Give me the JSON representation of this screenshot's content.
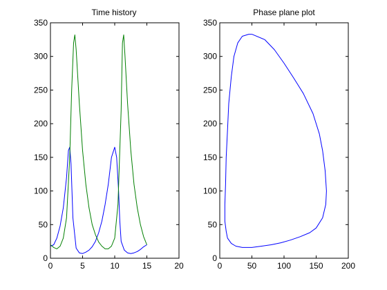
{
  "chart_data": [
    {
      "type": "line",
      "title": "Time history",
      "xlabel": "",
      "ylabel": "",
      "xlim": [
        0,
        20
      ],
      "ylim": [
        0,
        350
      ],
      "x_ticks": [
        0,
        5,
        10,
        15,
        20
      ],
      "y_ticks": [
        0,
        50,
        100,
        150,
        200,
        250,
        300,
        350
      ],
      "grid": false,
      "series": [
        {
          "color": "#0000ff",
          "x": [
            0,
            0.5,
            1,
            1.5,
            2,
            2.5,
            2.8,
            3,
            3.2,
            3.5,
            4,
            4.5,
            5,
            5.5,
            6,
            6.5,
            7,
            7.5,
            8,
            8.5,
            9,
            9.5,
            10,
            10.3,
            10.6,
            10.8,
            11,
            11.5,
            12,
            12.5,
            13,
            13.5,
            14,
            14.5,
            15
          ],
          "y": [
            18,
            20,
            30,
            48,
            75,
            120,
            160,
            165,
            140,
            60,
            15,
            8,
            7,
            9,
            12,
            17,
            25,
            38,
            55,
            80,
            110,
            150,
            165,
            150,
            100,
            55,
            25,
            12,
            8,
            7,
            8,
            10,
            13,
            17,
            20
          ]
        },
        {
          "color": "#007f00",
          "x": [
            0,
            0.5,
            1,
            1.5,
            2,
            2.5,
            3,
            3.3,
            3.6,
            3.8,
            4,
            4.5,
            5,
            5.5,
            6,
            6.5,
            7,
            7.5,
            8,
            8.5,
            9,
            9.5,
            10,
            10.5,
            11,
            11.2,
            11.4,
            11.6,
            12,
            12.5,
            13,
            13.5,
            14,
            14.5,
            15
          ],
          "y": [
            20,
            16,
            14,
            18,
            30,
            60,
            150,
            250,
            320,
            332,
            310,
            230,
            160,
            110,
            75,
            50,
            35,
            24,
            18,
            14,
            14,
            18,
            30,
            80,
            220,
            320,
            332,
            300,
            230,
            160,
            110,
            75,
            50,
            32,
            20
          ]
        }
      ]
    },
    {
      "type": "line",
      "title": "Phase plane plot",
      "xlabel": "",
      "ylabel": "",
      "xlim": [
        0,
        200
      ],
      "ylim": [
        0,
        350
      ],
      "x_ticks": [
        0,
        50,
        100,
        150,
        200
      ],
      "y_ticks": [
        0,
        50,
        100,
        150,
        200,
        250,
        300,
        350
      ],
      "grid": false,
      "series": [
        {
          "color": "#0000ff",
          "x": [
            50,
            70,
            85,
            100,
            115,
            130,
            145,
            155,
            160,
            164,
            166,
            165,
            160,
            150,
            140,
            125,
            110,
            95,
            80,
            65,
            50,
            35,
            25,
            18,
            12,
            10,
            8,
            8,
            9,
            10,
            12,
            14,
            18,
            22,
            28,
            35,
            45,
            50
          ],
          "y": [
            333,
            325,
            310,
            290,
            268,
            245,
            215,
            185,
            160,
            130,
            100,
            80,
            60,
            45,
            38,
            32,
            27,
            23,
            20,
            18,
            16,
            16,
            18,
            22,
            30,
            40,
            55,
            80,
            110,
            150,
            190,
            230,
            270,
            300,
            320,
            330,
            333,
            333
          ]
        }
      ]
    }
  ]
}
